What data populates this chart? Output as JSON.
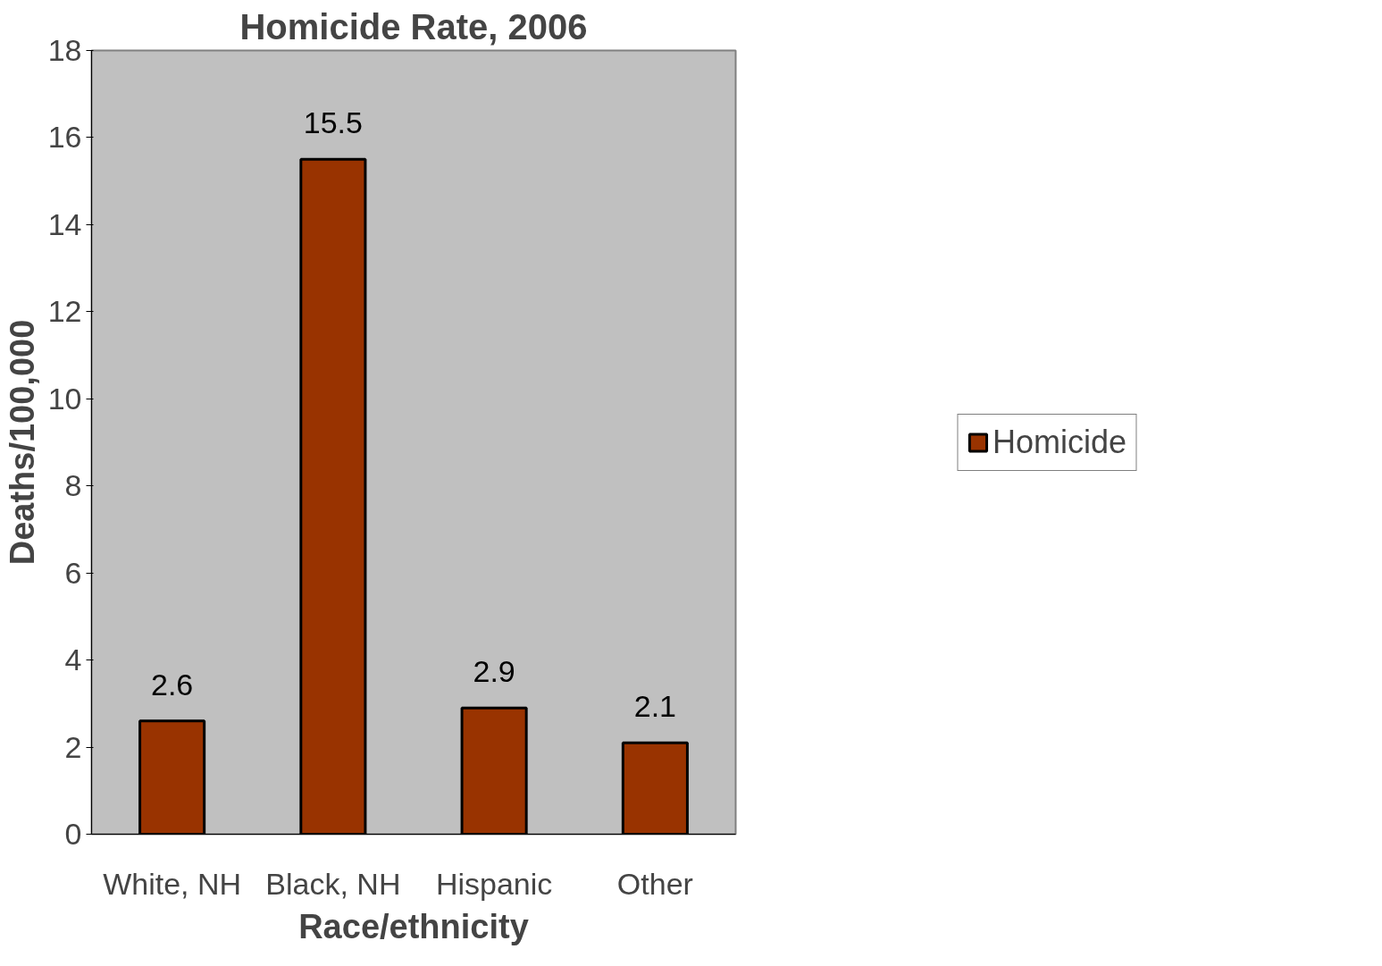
{
  "chart_data": {
    "type": "bar",
    "title": "Homicide Rate, 2006",
    "xlabel": "Race/ethnicity",
    "ylabel": "Deaths/100,000",
    "categories": [
      "White, NH",
      "Black, NH",
      "Hispanic",
      "Other"
    ],
    "series": [
      {
        "name": "Homicide",
        "color": "#993300",
        "values": [
          2.6,
          15.5,
          2.9,
          2.1
        ]
      }
    ],
    "ylim": [
      0,
      18
    ],
    "yticks": [
      0,
      2,
      4,
      6,
      8,
      10,
      12,
      14,
      16,
      18
    ],
    "grid": false,
    "legend": "right",
    "data_labels": true
  }
}
